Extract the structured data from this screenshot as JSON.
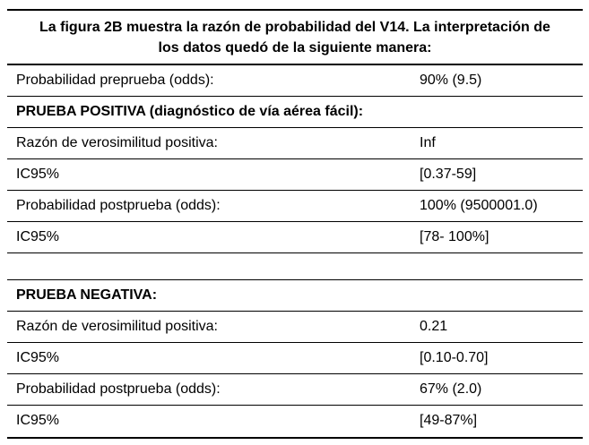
{
  "page": {
    "background_color": "#ffffff",
    "text_color": "#000000",
    "rule_color": "#000000"
  },
  "table": {
    "caption": {
      "full_text": "La figura 2B muestra la razón de probabilidad del V14. La interpretación de los datos quedó de la siguiente manera:",
      "line1": "La figura 2B muestra la razón de probabilidad del V14. La interpretación de",
      "line2": "los datos quedó de la siguiente manera:"
    },
    "rows": [
      {
        "type": "data",
        "label": "Probabilidad preprueba (odds):",
        "value": "90% (9.5)"
      },
      {
        "type": "section",
        "label": "PRUEBA POSITIVA (diagnóstico de vía aérea fácil):",
        "value": ""
      },
      {
        "type": "data",
        "label": "Razón de verosimilitud positiva:",
        "value": "Inf"
      },
      {
        "type": "data",
        "label": "IC95%",
        "value": "[0.37-59]"
      },
      {
        "type": "data",
        "label": "Probabilidad postprueba (odds):",
        "value": "100% (9500001.0)"
      },
      {
        "type": "data",
        "label": "IC95%",
        "value": "[78- 100%]"
      },
      {
        "type": "spacer",
        "label": "",
        "value": ""
      },
      {
        "type": "section",
        "label": "PRUEBA NEGATIVA:",
        "value": ""
      },
      {
        "type": "data",
        "label": "Razón de verosimilitud positiva:",
        "value": "0.21"
      },
      {
        "type": "data",
        "label": "IC95%",
        "value": "[0.10-0.70]"
      },
      {
        "type": "data",
        "label": "Probabilidad postprueba (odds):",
        "value": "67% (2.0)"
      },
      {
        "type": "data",
        "label": "IC95%",
        "value": "[49-87%]"
      }
    ]
  }
}
